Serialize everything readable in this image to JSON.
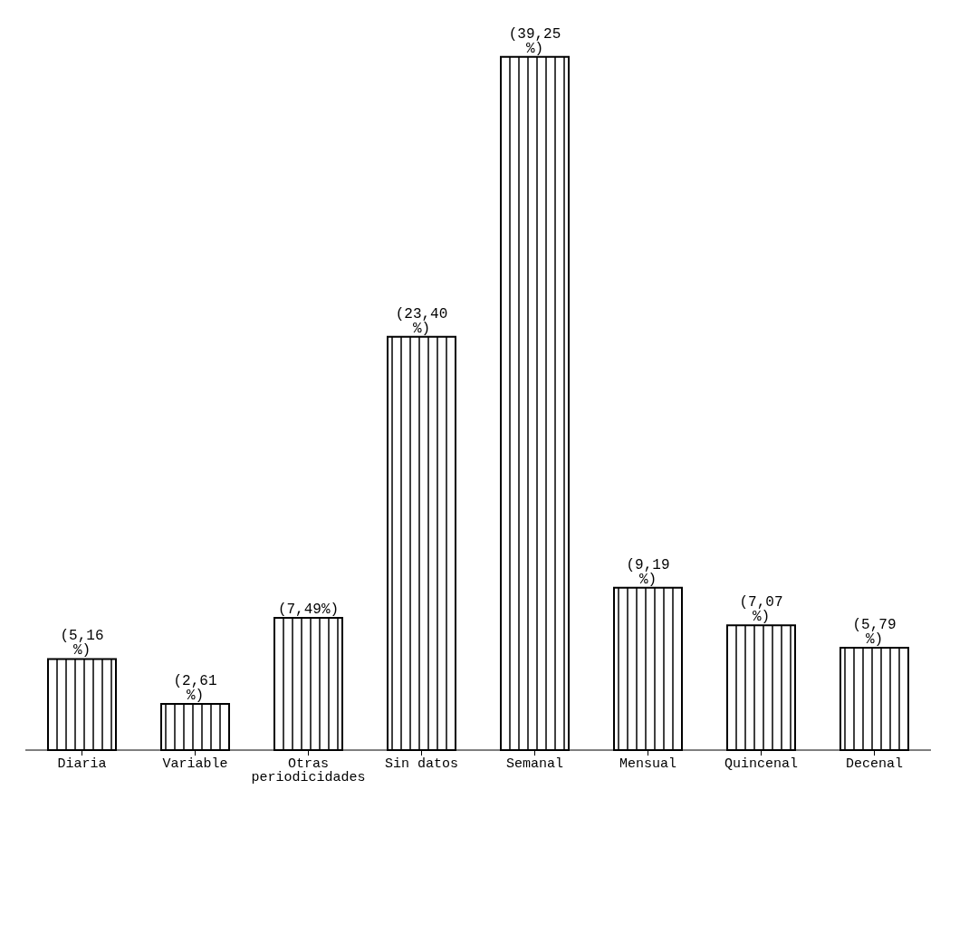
{
  "chart_data": {
    "type": "bar",
    "categories": [
      "Diaria",
      "Variable",
      "Otras periodicidades",
      "Sin datos",
      "Semanal",
      "Mensual",
      "Quincenal",
      "Decenal"
    ],
    "values": [
      5.16,
      2.61,
      7.49,
      23.4,
      39.25,
      9.19,
      7.07,
      5.79
    ],
    "value_labels": [
      "(5,16 %)",
      "(2,61 %)",
      "(7,49%)",
      "(23,40 %)",
      "(39,25 %)",
      "(9,19 %)",
      "(7,07 %)",
      "(5,79 %)"
    ],
    "color": "#000000",
    "legend": false,
    "grid": false
  }
}
